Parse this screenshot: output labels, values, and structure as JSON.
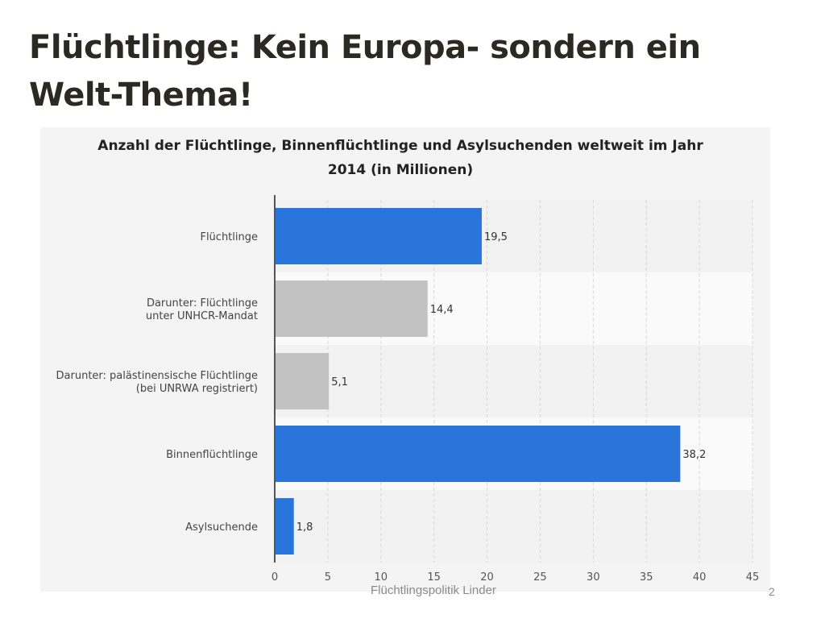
{
  "slide": {
    "title": "Flüchtlinge: Kein Europa- sondern ein Welt-Thema!",
    "footer": "Flüchtlingspolitik Linder",
    "page_number": "2"
  },
  "chart_data": {
    "type": "bar",
    "orientation": "horizontal",
    "title_lines": [
      "Anzahl der Flüchtlinge, Binnenflüchtlinge und Asylsuchenden weltweit im Jahr",
      "2014 (in Millionen)"
    ],
    "categories": [
      [
        "Flüchtlinge"
      ],
      [
        "Darunter: Flüchtlinge",
        "unter UNHCR-Mandat"
      ],
      [
        "Darunter: palästinensische Flüchtlinge",
        "(bei UNRWA registriert)"
      ],
      [
        "Binnenflüchtlinge"
      ],
      [
        "Asylsuchende"
      ]
    ],
    "values": [
      19.5,
      14.4,
      5.1,
      38.2,
      1.8
    ],
    "value_labels": [
      "19,5",
      "14,4",
      "5,1",
      "38,2",
      "1,8"
    ],
    "bar_colors": [
      "#2a75dc",
      "#c2c2c2",
      "#c2c2c2",
      "#2a75dc",
      "#2a75dc"
    ],
    "xlim": [
      0,
      45
    ],
    "xticks": [
      0,
      5,
      10,
      15,
      20,
      25,
      30,
      35,
      40,
      45
    ],
    "grid": true,
    "grid_style": "dashed vertical",
    "legend": "none"
  }
}
